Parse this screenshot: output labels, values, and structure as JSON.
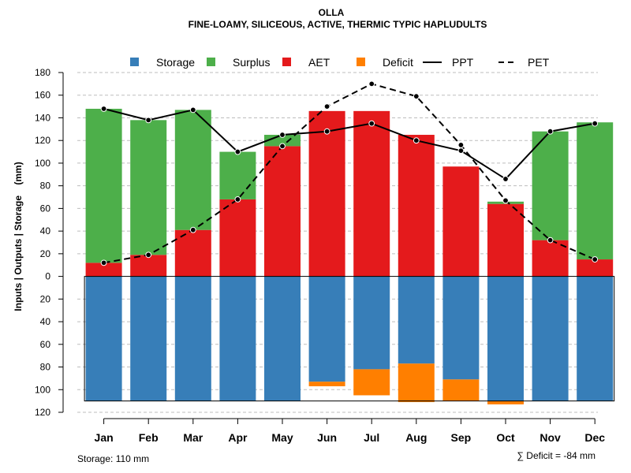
{
  "chart_data": {
    "type": "bar",
    "title": "OLLA",
    "subtitle": "FINE-LOAMY, SILICEOUS, ACTIVE, THERMIC TYPIC HAPLUDULTS",
    "ylabel": "Inputs | Outputs | Storage    (mm)",
    "ylim": [
      -120,
      180
    ],
    "yticks": [
      180,
      160,
      140,
      120,
      100,
      80,
      60,
      40,
      20,
      0,
      -20,
      -40,
      -60,
      -80,
      -100,
      -120
    ],
    "ytick_labels": [
      "180",
      "160",
      "140",
      "120",
      "100",
      "80",
      "60",
      "40",
      "20",
      "0",
      "20",
      "40",
      "60",
      "80",
      "100",
      "120"
    ],
    "categories": [
      "Jan",
      "Feb",
      "Mar",
      "Apr",
      "May",
      "Jun",
      "Jul",
      "Aug",
      "Sep",
      "Oct",
      "Nov",
      "Dec"
    ],
    "series": [
      {
        "name": "AET",
        "kind": "bar",
        "color": "#e41a1c",
        "values": [
          12,
          19,
          41,
          68,
          115,
          146,
          146,
          125,
          97,
          64,
          32,
          15
        ]
      },
      {
        "name": "Surplus",
        "kind": "bar",
        "color": "#4daf4a",
        "values": [
          136,
          119,
          106,
          42,
          10,
          0,
          0,
          0,
          0,
          2,
          96,
          121
        ]
      },
      {
        "name": "Storage",
        "kind": "bar_below",
        "color": "#377eb8",
        "values": [
          110,
          110,
          110,
          110,
          110,
          93,
          82,
          77,
          91,
          110,
          110,
          110
        ]
      },
      {
        "name": "Deficit",
        "kind": "bar_below",
        "color": "#ff7f00",
        "values": [
          0,
          0,
          0,
          0,
          0,
          4,
          23,
          34,
          19,
          3,
          0,
          0
        ]
      },
      {
        "name": "PPT",
        "kind": "line",
        "dash": "solid",
        "color": "#000000",
        "values": [
          148,
          138,
          147,
          110,
          125,
          128,
          135,
          120,
          111,
          86,
          128,
          135
        ]
      },
      {
        "name": "PET",
        "kind": "line",
        "dash": "dashed",
        "color": "#000000",
        "values": [
          12,
          19,
          41,
          68,
          115,
          150,
          170,
          159,
          116,
          67,
          32,
          15
        ]
      }
    ],
    "storage_capacity": 110,
    "legend": {
      "placement": "top",
      "items": [
        {
          "label": "Storage",
          "type": "box",
          "color": "#377eb8"
        },
        {
          "label": "Surplus",
          "type": "box",
          "color": "#4daf4a"
        },
        {
          "label": "AET",
          "type": "box",
          "color": "#e41a1c"
        },
        {
          "label": "Deficit",
          "type": "box",
          "color": "#ff7f00"
        },
        {
          "label": "PPT",
          "type": "line",
          "dash": "solid",
          "color": "#000000"
        },
        {
          "label": "PET",
          "type": "line",
          "dash": "dashed",
          "color": "#000000"
        }
      ]
    },
    "footer_left": "Storage: 110 mm",
    "footer_right": "∑ Deficit = -84 mm",
    "grid": true
  }
}
